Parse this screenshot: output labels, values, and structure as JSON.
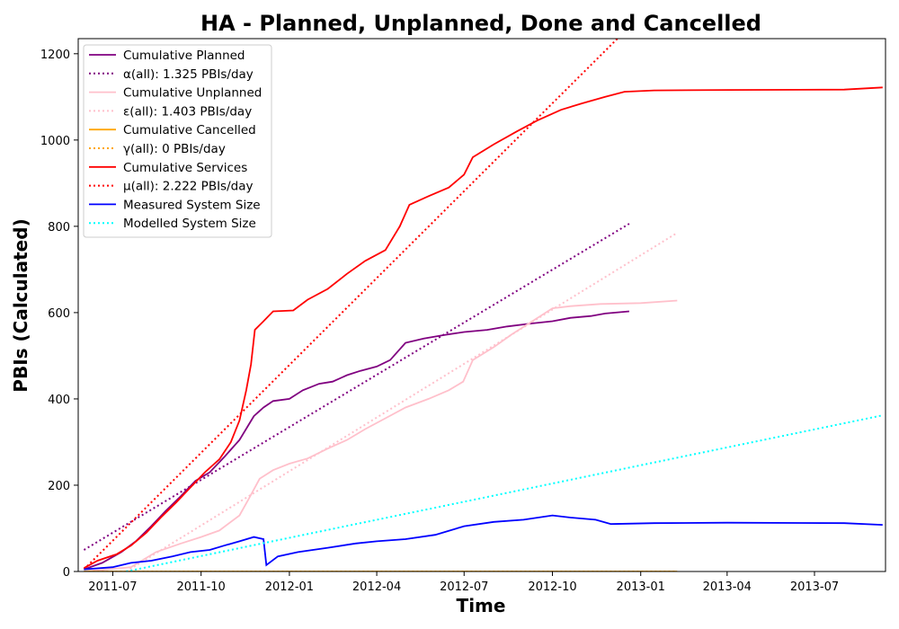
{
  "chart_data": {
    "type": "line",
    "title": "HA - Planned, Unplanned, Done  and Cancelled",
    "xlabel": "Time",
    "ylabel": "PBIs (Calculated)",
    "xlim": [
      "2011-05-26",
      "2013-09-13"
    ],
    "ylim": [
      0,
      1235
    ],
    "x_ticks": [
      "2011-07-01",
      "2011-10-01",
      "2012-01-01",
      "2012-04-01",
      "2012-07-01",
      "2012-10-01",
      "2013-01-01",
      "2013-04-01",
      "2013-07-01"
    ],
    "x_tick_labels": [
      "2011-07",
      "2011-10",
      "2012-01",
      "2012-04",
      "2012-07",
      "2012-10",
      "2013-01",
      "2013-04",
      "2013-07"
    ],
    "y_ticks": [
      0,
      200,
      400,
      600,
      800,
      1000,
      1200
    ],
    "grid": false,
    "legend_position": "top-left",
    "series": [
      {
        "name": "Cumulative Planned",
        "color": "#800080",
        "style": "solid",
        "points": [
          [
            "2011-06-01",
            5
          ],
          [
            "2011-06-20",
            20
          ],
          [
            "2011-07-10",
            45
          ],
          [
            "2011-07-25",
            70
          ],
          [
            "2011-08-10",
            105
          ],
          [
            "2011-08-25",
            140
          ],
          [
            "2011-09-10",
            175
          ],
          [
            "2011-09-25",
            210
          ],
          [
            "2011-10-10",
            230
          ],
          [
            "2011-10-25",
            265
          ],
          [
            "2011-11-10",
            305
          ],
          [
            "2011-11-25",
            360
          ],
          [
            "2011-12-05",
            380
          ],
          [
            "2011-12-15",
            395
          ],
          [
            "2012-01-01",
            400
          ],
          [
            "2012-01-15",
            420
          ],
          [
            "2012-02-01",
            435
          ],
          [
            "2012-02-15",
            440
          ],
          [
            "2012-03-01",
            455
          ],
          [
            "2012-03-15",
            465
          ],
          [
            "2012-04-01",
            475
          ],
          [
            "2012-04-15",
            490
          ],
          [
            "2012-05-01",
            530
          ],
          [
            "2012-05-20",
            540
          ],
          [
            "2012-06-10",
            548
          ],
          [
            "2012-07-01",
            555
          ],
          [
            "2012-07-25",
            560
          ],
          [
            "2012-08-15",
            568
          ],
          [
            "2012-09-10",
            575
          ],
          [
            "2012-10-01",
            580
          ],
          [
            "2012-10-20",
            588
          ],
          [
            "2012-11-10",
            592
          ],
          [
            "2012-11-25",
            598
          ],
          [
            "2012-12-20",
            603
          ]
        ]
      },
      {
        "name": "α(all): 1.325 PBIs/day",
        "color": "#800080",
        "style": "dotted",
        "points": [
          [
            "2011-06-01",
            50
          ],
          [
            "2012-12-20",
            806
          ]
        ]
      },
      {
        "name": "Cumulative Unplanned",
        "color": "#ffc0cb",
        "style": "solid",
        "points": [
          [
            "2011-06-01",
            0
          ],
          [
            "2011-07-20",
            10
          ],
          [
            "2011-08-15",
            45
          ],
          [
            "2011-09-10",
            65
          ],
          [
            "2011-10-01",
            80
          ],
          [
            "2011-10-20",
            95
          ],
          [
            "2011-11-10",
            130
          ],
          [
            "2011-11-20",
            170
          ],
          [
            "2011-12-01",
            215
          ],
          [
            "2011-12-15",
            235
          ],
          [
            "2012-01-01",
            250
          ],
          [
            "2012-01-20",
            262
          ],
          [
            "2012-02-10",
            285
          ],
          [
            "2012-03-01",
            305
          ],
          [
            "2012-03-20",
            330
          ],
          [
            "2012-04-10",
            355
          ],
          [
            "2012-05-01",
            380
          ],
          [
            "2012-05-25",
            400
          ],
          [
            "2012-06-15",
            420
          ],
          [
            "2012-06-30",
            440
          ],
          [
            "2012-07-10",
            490
          ],
          [
            "2012-08-01",
            520
          ],
          [
            "2012-08-20",
            550
          ],
          [
            "2012-09-10",
            580
          ],
          [
            "2012-10-01",
            610
          ],
          [
            "2012-10-20",
            615
          ],
          [
            "2012-11-20",
            620
          ],
          [
            "2013-01-01",
            622
          ],
          [
            "2013-02-08",
            628
          ]
        ]
      },
      {
        "name": "ε(all): 1.403 PBIs/day",
        "color": "#ffc0cb",
        "style": "dotted",
        "points": [
          [
            "2011-07-15",
            0
          ],
          [
            "2013-02-08",
            785
          ]
        ]
      },
      {
        "name": "Cumulative Cancelled",
        "color": "#ffa500",
        "style": "solid",
        "points": [
          [
            "2011-06-01",
            0
          ],
          [
            "2013-02-08",
            0
          ]
        ]
      },
      {
        "name": "γ(all): 0 PBIs/day",
        "color": "#ffa500",
        "style": "dotted",
        "points": [
          [
            "2011-06-01",
            0
          ],
          [
            "2013-02-08",
            0
          ]
        ]
      },
      {
        "name": "Cumulative Services",
        "color": "#ff0000",
        "style": "solid",
        "points": [
          [
            "2011-06-01",
            8
          ],
          [
            "2011-06-15",
            25
          ],
          [
            "2011-07-05",
            40
          ],
          [
            "2011-07-20",
            60
          ],
          [
            "2011-08-05",
            90
          ],
          [
            "2011-08-20",
            125
          ],
          [
            "2011-09-05",
            160
          ],
          [
            "2011-09-20",
            195
          ],
          [
            "2011-10-05",
            230
          ],
          [
            "2011-10-20",
            260
          ],
          [
            "2011-11-01",
            300
          ],
          [
            "2011-11-10",
            350
          ],
          [
            "2011-11-17",
            420
          ],
          [
            "2011-11-22",
            480
          ],
          [
            "2011-11-26",
            560
          ],
          [
            "2011-12-05",
            580
          ],
          [
            "2011-12-15",
            603
          ],
          [
            "2012-01-05",
            605
          ],
          [
            "2012-01-20",
            630
          ],
          [
            "2012-02-10",
            655
          ],
          [
            "2012-03-01",
            690
          ],
          [
            "2012-03-20",
            720
          ],
          [
            "2012-04-10",
            745
          ],
          [
            "2012-04-25",
            800
          ],
          [
            "2012-05-05",
            850
          ],
          [
            "2012-05-25",
            870
          ],
          [
            "2012-06-15",
            890
          ],
          [
            "2012-07-01",
            920
          ],
          [
            "2012-07-10",
            960
          ],
          [
            "2012-08-01",
            990
          ],
          [
            "2012-08-25",
            1020
          ],
          [
            "2012-09-15",
            1045
          ],
          [
            "2012-10-10",
            1070
          ],
          [
            "2012-11-01",
            1085
          ],
          [
            "2012-11-25",
            1100
          ],
          [
            "2012-12-15",
            1112
          ],
          [
            "2013-01-15",
            1115
          ],
          [
            "2013-04-01",
            1116
          ],
          [
            "2013-08-01",
            1117
          ],
          [
            "2013-09-10",
            1122
          ]
        ]
      },
      {
        "name": "μ(all): 2.222 PBIs/day",
        "color": "#ff0000",
        "style": "dotted",
        "points": [
          [
            "2011-06-01",
            5
          ],
          [
            "2012-12-10",
            1240
          ]
        ]
      },
      {
        "name": "Measured System Size",
        "color": "#0000ff",
        "style": "solid",
        "points": [
          [
            "2011-06-01",
            5
          ],
          [
            "2011-07-01",
            10
          ],
          [
            "2011-07-20",
            20
          ],
          [
            "2011-08-10",
            25
          ],
          [
            "2011-09-01",
            35
          ],
          [
            "2011-09-20",
            45
          ],
          [
            "2011-10-10",
            50
          ],
          [
            "2011-10-25",
            60
          ],
          [
            "2011-11-10",
            70
          ],
          [
            "2011-11-25",
            80
          ],
          [
            "2011-12-05",
            75
          ],
          [
            "2011-12-08",
            15
          ],
          [
            "2011-12-20",
            35
          ],
          [
            "2012-01-10",
            45
          ],
          [
            "2012-02-10",
            55
          ],
          [
            "2012-03-10",
            65
          ],
          [
            "2012-04-01",
            70
          ],
          [
            "2012-05-01",
            75
          ],
          [
            "2012-06-01",
            85
          ],
          [
            "2012-07-01",
            105
          ],
          [
            "2012-08-01",
            115
          ],
          [
            "2012-09-01",
            120
          ],
          [
            "2012-10-01",
            130
          ],
          [
            "2012-10-20",
            125
          ],
          [
            "2012-11-15",
            120
          ],
          [
            "2012-12-01",
            110
          ],
          [
            "2013-01-15",
            112
          ],
          [
            "2013-04-01",
            113
          ],
          [
            "2013-08-01",
            112
          ],
          [
            "2013-09-10",
            108
          ]
        ]
      },
      {
        "name": "Modelled System Size",
        "color": "#00ffff",
        "style": "dotted",
        "points": [
          [
            "2011-07-15",
            0
          ],
          [
            "2013-09-10",
            362
          ]
        ]
      }
    ]
  }
}
